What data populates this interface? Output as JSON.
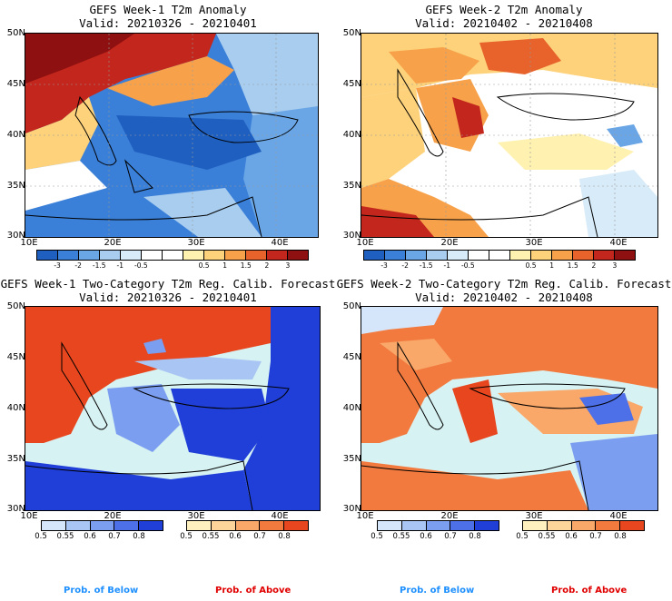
{
  "panels": [
    {
      "title": "GEFS Week-1 T2m Anomaly",
      "valid": "Valid: 20210326 - 20210401",
      "lat_ticks": [
        "50N",
        "45N",
        "40N",
        "35N",
        "30N"
      ],
      "lon_ticks": [
        "10E",
        "20E",
        "30E",
        "40E"
      ],
      "colorbar": {
        "colors": [
          "#1f5fbf",
          "#3a7fd8",
          "#6aa6e6",
          "#a8cdef",
          "#d8ebf8",
          "#ffffff",
          "#ffffff",
          "#fff1b0",
          "#fdd27a",
          "#f7a24a",
          "#e8622c",
          "#c3261c",
          "#8e1010"
        ],
        "labels": [
          "-3",
          "-2",
          "-1.5",
          "-1",
          "-0.5",
          "0.5",
          "1",
          "1.5",
          "2",
          "3"
        ]
      }
    },
    {
      "title": "GEFS Week-2 T2m Anomaly",
      "valid": "Valid: 20210402 - 20210408",
      "lat_ticks": [
        "50N",
        "45N",
        "40N",
        "35N",
        "30N"
      ],
      "lon_ticks": [
        "10E",
        "20E",
        "30E",
        "40E"
      ],
      "colorbar": {
        "colors": [
          "#1f5fbf",
          "#3a7fd8",
          "#6aa6e6",
          "#a8cdef",
          "#d8ebf8",
          "#ffffff",
          "#ffffff",
          "#fff1b0",
          "#fdd27a",
          "#f7a24a",
          "#e8622c",
          "#c3261c",
          "#8e1010"
        ],
        "labels": [
          "-3",
          "-2",
          "-1.5",
          "-1",
          "-0.5",
          "0.5",
          "1",
          "1.5",
          "2",
          "3"
        ]
      }
    },
    {
      "title": "GEFS Week-1 Two-Category T2m Reg. Calib. Forecast",
      "valid": "Valid: 20210326 - 20210401",
      "lat_ticks": [
        "50N",
        "45N",
        "40N",
        "35N",
        "30N"
      ],
      "lon_ticks": [
        "10E",
        "20E",
        "30E",
        "40E"
      ],
      "below_colors": [
        "#d6e6fa",
        "#a9c5f4",
        "#7b9ef0",
        "#4d6fe8",
        "#1f3fd8"
      ],
      "above_colors": [
        "#fff0c0",
        "#fdd49a",
        "#f9a86a",
        "#f27a3e",
        "#e8461e"
      ],
      "prob_labels": [
        "0.5",
        "0.55",
        "0.6",
        "0.7",
        "0.8"
      ]
    },
    {
      "title": "GEFS Week-2 Two-Category T2m Reg. Calib. Forecast",
      "valid": "Valid: 20210402 - 20210408",
      "lat_ticks": [
        "50N",
        "45N",
        "40N",
        "35N",
        "30N"
      ],
      "lon_ticks": [
        "10E",
        "20E",
        "30E",
        "40E"
      ],
      "below_colors": [
        "#d6e6fa",
        "#a9c5f4",
        "#7b9ef0",
        "#4d6fe8",
        "#1f3fd8"
      ],
      "above_colors": [
        "#fff0c0",
        "#fdd49a",
        "#f9a86a",
        "#f27a3e",
        "#e8461e"
      ],
      "prob_labels": [
        "0.5",
        "0.55",
        "0.6",
        "0.7",
        "0.8"
      ]
    }
  ],
  "legend": {
    "below_label": "Prob. of Below",
    "above_label": "Prob. of Above",
    "below_color": "#1e90ff",
    "above_color": "#e00000"
  },
  "colors": {
    "sea": "#d7f2f2",
    "land_white": "#ffffff"
  }
}
